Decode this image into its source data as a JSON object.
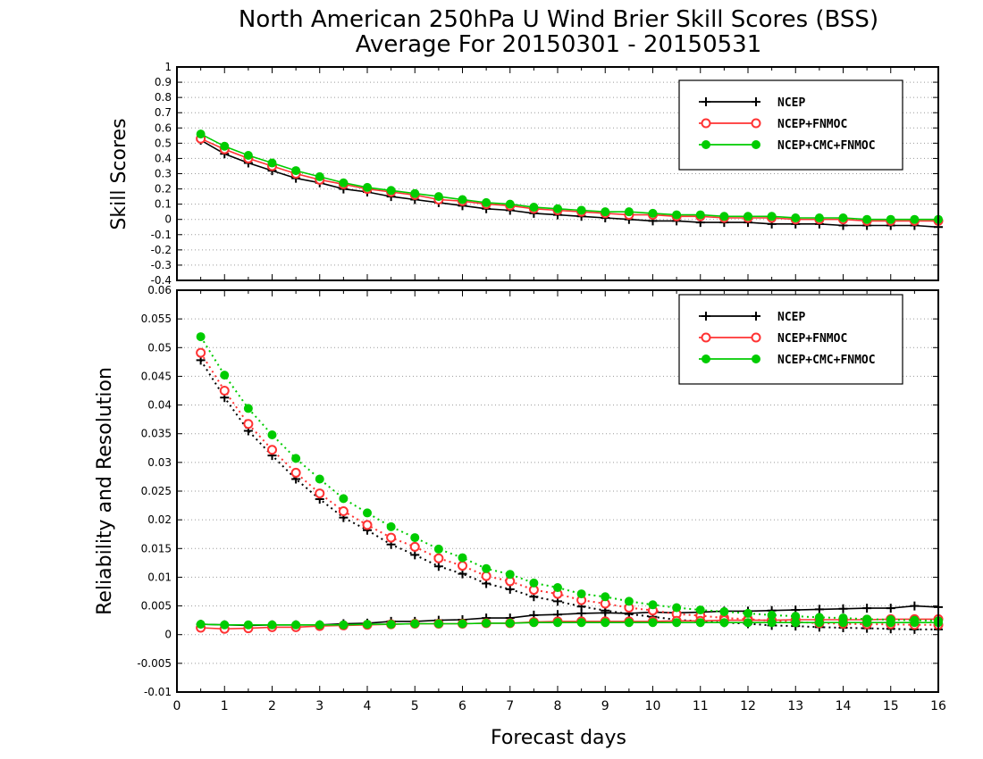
{
  "chart_data": [
    {
      "type": "line",
      "title": "North American 250hPa U Wind Brier Skill Scores (BSS)",
      "subtitle": "Average For 20150301 - 20150531",
      "xlabel": "",
      "ylabel": "Skill Scores",
      "xlim": [
        0,
        16
      ],
      "ylim": [
        -0.4,
        1
      ],
      "yticks": [
        "1",
        "0.9",
        "0.8",
        "0.7",
        "0.6",
        "0.5",
        "0.4",
        "0.3",
        "0.2",
        "0.1",
        "0",
        "-0.1",
        "-0.2",
        "-0.3",
        "-0.4"
      ],
      "grid": "horizontal dotted",
      "legend_position": "top-right",
      "x": [
        0.5,
        1,
        1.5,
        2,
        2.5,
        3,
        3.5,
        4,
        4.5,
        5,
        5.5,
        6,
        6.5,
        7,
        7.5,
        8,
        8.5,
        9,
        9.5,
        10,
        10.5,
        11,
        11.5,
        12,
        12.5,
        13,
        13.5,
        14,
        14.5,
        15,
        15.5,
        16
      ],
      "series": [
        {
          "name": "NCEP",
          "color": "#000000",
          "marker": "plus",
          "line": "solid",
          "values": [
            0.52,
            0.43,
            0.37,
            0.32,
            0.27,
            0.24,
            0.2,
            0.18,
            0.15,
            0.13,
            0.11,
            0.09,
            0.07,
            0.06,
            0.04,
            0.03,
            0.02,
            0.01,
            0.0,
            -0.01,
            -0.01,
            -0.02,
            -0.02,
            -0.02,
            -0.03,
            -0.03,
            -0.03,
            -0.04,
            -0.04,
            -0.04,
            -0.04,
            -0.05
          ]
        },
        {
          "name": "NCEP+FNMOC",
          "color": "#ff3333",
          "marker": "open-circle",
          "line": "solid",
          "values": [
            0.53,
            0.46,
            0.4,
            0.35,
            0.3,
            0.26,
            0.23,
            0.2,
            0.18,
            0.16,
            0.13,
            0.12,
            0.1,
            0.09,
            0.07,
            0.06,
            0.05,
            0.04,
            0.03,
            0.03,
            0.02,
            0.02,
            0.01,
            0.01,
            0.01,
            0.0,
            0.0,
            0.0,
            -0.01,
            -0.01,
            -0.01,
            -0.01
          ]
        },
        {
          "name": "NCEP+CMC+FNMOC",
          "color": "#00cc00",
          "marker": "filled-circle",
          "line": "solid",
          "values": [
            0.56,
            0.48,
            0.42,
            0.37,
            0.32,
            0.28,
            0.24,
            0.21,
            0.19,
            0.17,
            0.15,
            0.13,
            0.11,
            0.1,
            0.08,
            0.07,
            0.06,
            0.05,
            0.05,
            0.04,
            0.03,
            0.03,
            0.02,
            0.02,
            0.02,
            0.01,
            0.01,
            0.01,
            0.0,
            0.0,
            0.0,
            0.0
          ]
        }
      ]
    },
    {
      "type": "line",
      "title": "",
      "xlabel": "Forecast days",
      "ylabel": "Reliability and Resolution",
      "xlim": [
        0,
        16
      ],
      "ylim": [
        -0.01,
        0.06
      ],
      "xticks": [
        "0",
        "1",
        "2",
        "3",
        "4",
        "5",
        "6",
        "7",
        "8",
        "9",
        "10",
        "11",
        "12",
        "13",
        "14",
        "15",
        "16"
      ],
      "yticks": [
        "0.06",
        "0.055",
        "0.05",
        "0.045",
        "0.04",
        "0.035",
        "0.03",
        "0.025",
        "0.02",
        "0.015",
        "0.01",
        "0.005",
        "0",
        "-0.005",
        "-0.01"
      ],
      "grid": "horizontal dotted",
      "legend_position": "top-right",
      "x": [
        0.5,
        1,
        1.5,
        2,
        2.5,
        3,
        3.5,
        4,
        4.5,
        5,
        5.5,
        6,
        6.5,
        7,
        7.5,
        8,
        8.5,
        9,
        9.5,
        10,
        10.5,
        11,
        11.5,
        12,
        12.5,
        13,
        13.5,
        14,
        14.5,
        15,
        15.5,
        16
      ],
      "series": [
        {
          "name": "NCEP",
          "color": "#000000",
          "marker": "plus",
          "line": "dotted",
          "values": [
            0.0478,
            0.0413,
            0.0355,
            0.0312,
            0.0271,
            0.0236,
            0.0204,
            0.0182,
            0.0157,
            0.0139,
            0.0119,
            0.0106,
            0.0089,
            0.0079,
            0.0066,
            0.0058,
            0.0049,
            0.0042,
            0.0036,
            0.0031,
            0.0026,
            0.0023,
            0.0021,
            0.0019,
            0.0016,
            0.0015,
            0.0013,
            0.0012,
            0.0011,
            0.001,
            0.0009,
            0.0009
          ]
        },
        {
          "name": "NCEP",
          "color": "#000000",
          "marker": "plus",
          "line": "solid",
          "values": [
            0.0018,
            0.0017,
            0.0016,
            0.0017,
            0.0017,
            0.0017,
            0.0019,
            0.002,
            0.0023,
            0.0023,
            0.0025,
            0.0026,
            0.0029,
            0.0029,
            0.0034,
            0.0035,
            0.0037,
            0.0038,
            0.0037,
            0.0039,
            0.0038,
            0.0039,
            0.0041,
            0.0041,
            0.0042,
            0.0043,
            0.0044,
            0.0045,
            0.0046,
            0.0046,
            0.005,
            0.0048
          ]
        },
        {
          "name": "NCEP+FNMOC",
          "color": "#ff3333",
          "marker": "open-circle",
          "line": "dotted",
          "values": [
            0.0491,
            0.0425,
            0.0367,
            0.0322,
            0.0282,
            0.0246,
            0.0215,
            0.0191,
            0.0169,
            0.0153,
            0.0133,
            0.012,
            0.0102,
            0.0093,
            0.0078,
            0.0071,
            0.006,
            0.0054,
            0.0047,
            0.0042,
            0.0036,
            0.0033,
            0.0029,
            0.0027,
            0.0024,
            0.0022,
            0.002,
            0.0019,
            0.0018,
            0.0018,
            0.0017,
            0.0017
          ]
        },
        {
          "name": "NCEP+FNMOC",
          "color": "#ff3333",
          "marker": "open-circle",
          "line": "solid",
          "values": [
            0.0012,
            0.001,
            0.0011,
            0.0013,
            0.0013,
            0.0015,
            0.0016,
            0.0017,
            0.0018,
            0.0019,
            0.0019,
            0.0019,
            0.002,
            0.002,
            0.0022,
            0.0023,
            0.0023,
            0.0023,
            0.0023,
            0.0023,
            0.0024,
            0.0024,
            0.0025,
            0.0025,
            0.0025,
            0.0026,
            0.0026,
            0.0026,
            0.0026,
            0.0027,
            0.0027,
            0.0027
          ]
        },
        {
          "name": "NCEP+CMC+FNMOC",
          "color": "#00cc00",
          "marker": "filled-circle",
          "line": "dotted",
          "values": [
            0.0519,
            0.0452,
            0.0394,
            0.0348,
            0.0307,
            0.0271,
            0.0237,
            0.0212,
            0.0188,
            0.0169,
            0.0149,
            0.0134,
            0.0115,
            0.0105,
            0.009,
            0.0082,
            0.0071,
            0.0066,
            0.0058,
            0.0052,
            0.0047,
            0.0043,
            0.004,
            0.0037,
            0.0034,
            0.0032,
            0.003,
            0.0029,
            0.0027,
            0.0026,
            0.0025,
            0.0024
          ]
        },
        {
          "name": "NCEP+CMC+FNMOC",
          "color": "#00cc00",
          "marker": "filled-circle",
          "line": "solid",
          "values": [
            0.0018,
            0.0017,
            0.0017,
            0.0017,
            0.0017,
            0.0017,
            0.0017,
            0.0018,
            0.0018,
            0.0019,
            0.0019,
            0.0019,
            0.002,
            0.002,
            0.0021,
            0.0021,
            0.0021,
            0.0021,
            0.0021,
            0.0021,
            0.0021,
            0.0021,
            0.0021,
            0.0021,
            0.0021,
            0.0021,
            0.0021,
            0.0021,
            0.0021,
            0.0021,
            0.0021,
            0.0021
          ]
        }
      ]
    }
  ]
}
